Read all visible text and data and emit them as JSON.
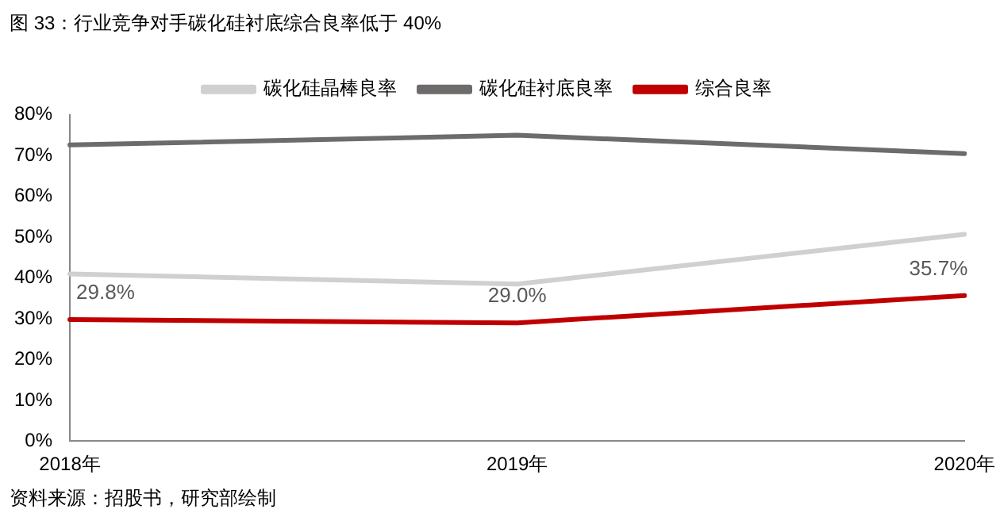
{
  "chart_data": {
    "type": "line",
    "title": "图 33：行业竞争对手碳化硅衬底综合良率低于 40%",
    "categories": [
      "2018年",
      "2019年",
      "2020年"
    ],
    "series": [
      {
        "name": "碳化硅晶棒良率",
        "color": "#d0d0d0",
        "values": [
          41,
          38.5,
          50.7
        ]
      },
      {
        "name": "碳化硅衬底良率",
        "color": "#6e6b6b",
        "values": [
          72.6,
          75,
          70.5
        ]
      },
      {
        "name": "综合良率",
        "color": "#c00000",
        "values": [
          29.8,
          29.0,
          35.7
        ],
        "value_labels": [
          "29.8%",
          "29.0%",
          "35.7%"
        ]
      }
    ],
    "ylim": [
      0,
      80
    ],
    "yticks": [
      {
        "value": 0,
        "label": "0%"
      },
      {
        "value": 10,
        "label": "10%"
      },
      {
        "value": 20,
        "label": "20%"
      },
      {
        "value": 30,
        "label": "30%"
      },
      {
        "value": 40,
        "label": "40%"
      },
      {
        "value": 50,
        "label": "50%"
      },
      {
        "value": 60,
        "label": "60%"
      },
      {
        "value": 70,
        "label": "70%"
      },
      {
        "value": 80,
        "label": "80%"
      }
    ],
    "grid": false,
    "legend": "top",
    "marker": "none",
    "line_style": "solid",
    "annotations": [
      "资料来源：招股书，研究部绘制"
    ]
  }
}
